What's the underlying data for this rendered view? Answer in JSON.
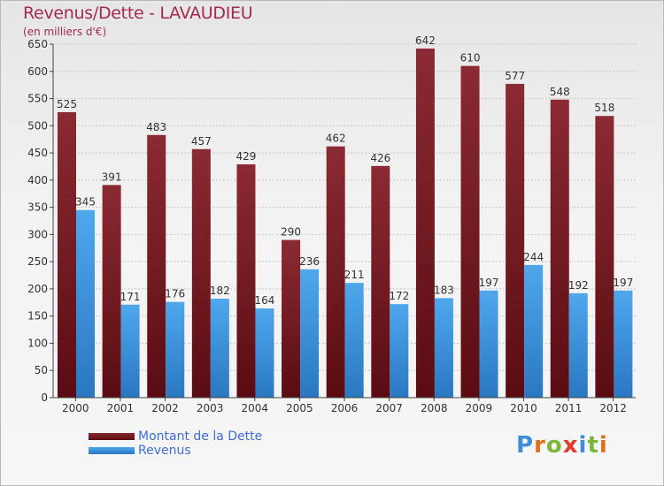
{
  "title": "Revenus/Dette - LAVAUDIEU",
  "subtitle": "(en milliers d'€)",
  "legend": {
    "debt_label": "Montant de la Dette",
    "revenue_label": "Revenus"
  },
  "logo_text": "Proxiti",
  "colors": {
    "debt": "#7a1f26",
    "revenue": "#3f95dd",
    "title": "#a32a4d",
    "legend_text": "#3f6de0"
  },
  "chart_data": {
    "type": "bar",
    "categories": [
      "2000",
      "2001",
      "2002",
      "2003",
      "2004",
      "2005",
      "2006",
      "2007",
      "2008",
      "2009",
      "2010",
      "2011",
      "2012"
    ],
    "series": [
      {
        "name": "Montant de la Dette",
        "values": [
          525,
          391,
          483,
          457,
          429,
          290,
          462,
          426,
          642,
          610,
          577,
          548,
          518
        ]
      },
      {
        "name": "Revenus",
        "values": [
          345,
          171,
          176,
          182,
          164,
          236,
          211,
          172,
          183,
          197,
          244,
          192,
          197
        ]
      }
    ],
    "ylim": [
      0,
      650
    ],
    "yticks": [
      0,
      50,
      100,
      150,
      200,
      250,
      300,
      350,
      400,
      450,
      500,
      550,
      600,
      650
    ],
    "grid": true,
    "legend_position": "bottom-left"
  }
}
